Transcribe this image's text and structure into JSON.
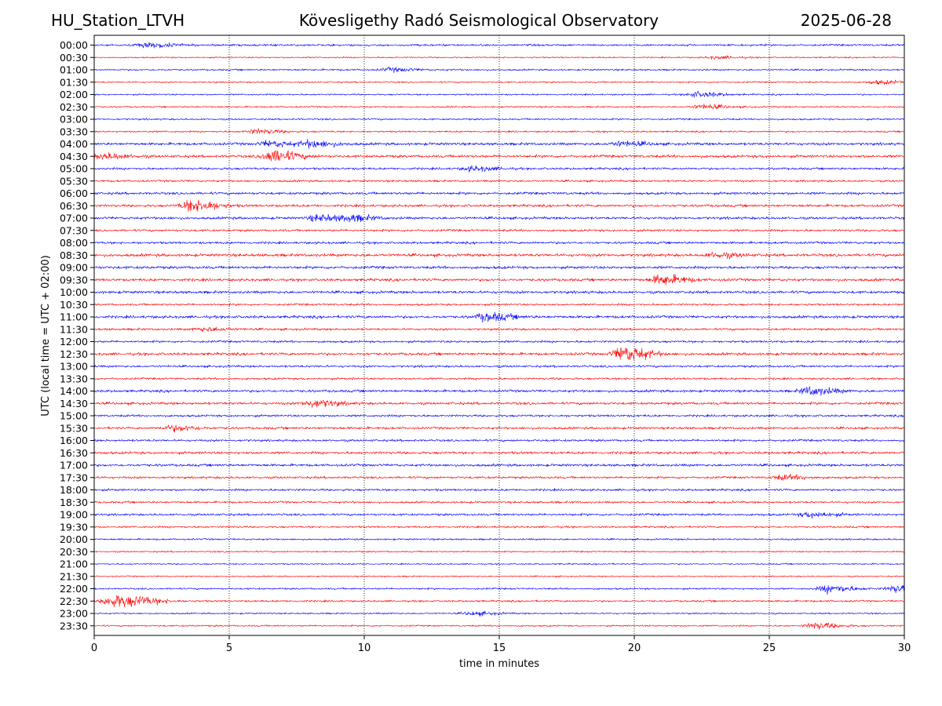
{
  "header": {
    "station": "HU_Station_LTVH",
    "observatory": "Kövesligethy Radó Seismological Observatory",
    "date": "2025-06-28"
  },
  "chart_data": {
    "type": "line",
    "title": "Kövesligethy Radó Seismological Observatory",
    "xlabel": "time in minutes",
    "ylabel": "UTC (local time = UTC + 02:00)",
    "xlim": [
      0,
      30
    ],
    "xticks": [
      0,
      5,
      10,
      15,
      20,
      25,
      30
    ],
    "vgrid_minutes": [
      5,
      10,
      15,
      20,
      25
    ],
    "grid": "dotted vertical",
    "colors": {
      "even_rows": "#0000ff",
      "odd_rows": "#ff0000",
      "grid": "#000000"
    },
    "rows": [
      "00:00",
      "00:30",
      "01:00",
      "01:30",
      "02:00",
      "02:30",
      "03:00",
      "03:30",
      "04:00",
      "04:30",
      "05:00",
      "05:30",
      "06:00",
      "06:30",
      "07:00",
      "07:30",
      "08:00",
      "08:30",
      "09:00",
      "09:30",
      "10:00",
      "10:30",
      "11:00",
      "11:30",
      "12:00",
      "12:30",
      "13:00",
      "13:30",
      "14:00",
      "14:30",
      "15:00",
      "15:30",
      "16:00",
      "16:30",
      "17:00",
      "17:30",
      "18:00",
      "18:30",
      "19:00",
      "19:30",
      "20:00",
      "20:30",
      "21:00",
      "21:30",
      "22:00",
      "22:30",
      "23:00",
      "23:30"
    ],
    "trace_noise": [
      1.2,
      0.8,
      1.0,
      0.9,
      0.9,
      0.9,
      1.0,
      1.0,
      1.6,
      1.6,
      1.3,
      1.2,
      1.5,
      1.5,
      1.5,
      1.3,
      1.4,
      1.7,
      1.6,
      1.6,
      1.6,
      1.2,
      1.6,
      1.3,
      1.3,
      1.6,
      1.3,
      1.2,
      1.5,
      1.5,
      1.3,
      1.4,
      1.3,
      1.5,
      1.5,
      1.3,
      1.3,
      1.2,
      1.3,
      1.1,
      1.0,
      0.9,
      0.8,
      0.8,
      1.0,
      1.1,
      0.9,
      0.9
    ],
    "events": [
      {
        "row": "00:00",
        "minute": 2.0,
        "amp": 2.5
      },
      {
        "row": "00:30",
        "minute": 23.0,
        "amp": 1.5
      },
      {
        "row": "01:00",
        "minute": 11.0,
        "amp": 2.0
      },
      {
        "row": "01:30",
        "minute": 29.0,
        "amp": 2.0
      },
      {
        "row": "02:00",
        "minute": 22.3,
        "amp": 3.0
      },
      {
        "row": "02:30",
        "minute": 22.5,
        "amp": 2.5
      },
      {
        "row": "03:30",
        "minute": 6.0,
        "amp": 2.5
      },
      {
        "row": "04:00",
        "minute": 6.5,
        "amp": 3.0
      },
      {
        "row": "04:00",
        "minute": 8.0,
        "amp": 3.5
      },
      {
        "row": "04:00",
        "minute": 19.5,
        "amp": 2.5
      },
      {
        "row": "04:30",
        "minute": 0.4,
        "amp": 3.0
      },
      {
        "row": "04:30",
        "minute": 6.6,
        "amp": 7.0
      },
      {
        "row": "05:00",
        "minute": 14.0,
        "amp": 2.5
      },
      {
        "row": "06:30",
        "minute": 3.6,
        "amp": 7.5
      },
      {
        "row": "07:00",
        "minute": 8.3,
        "amp": 3.5
      },
      {
        "row": "07:00",
        "minute": 9.5,
        "amp": 3.0
      },
      {
        "row": "08:30",
        "minute": 23.0,
        "amp": 2.5
      },
      {
        "row": "09:30",
        "minute": 21.0,
        "amp": 5.5
      },
      {
        "row": "11:00",
        "minute": 14.5,
        "amp": 4.5
      },
      {
        "row": "11:30",
        "minute": 4.0,
        "amp": 2.0
      },
      {
        "row": "12:30",
        "minute": 19.6,
        "amp": 9.5
      },
      {
        "row": "14:00",
        "minute": 26.5,
        "amp": 4.5
      },
      {
        "row": "14:30",
        "minute": 8.1,
        "amp": 4.0
      },
      {
        "row": "15:30",
        "minute": 2.9,
        "amp": 3.0
      },
      {
        "row": "17:30",
        "minute": 25.5,
        "amp": 2.5
      },
      {
        "row": "19:00",
        "minute": 26.5,
        "amp": 3.0
      },
      {
        "row": "22:00",
        "minute": 27.2,
        "amp": 4.5
      },
      {
        "row": "22:00",
        "minute": 29.7,
        "amp": 4.0
      },
      {
        "row": "22:30",
        "minute": 0.7,
        "amp": 7.5
      },
      {
        "row": "22:30",
        "minute": 1.8,
        "amp": 3.0
      },
      {
        "row": "23:00",
        "minute": 14.0,
        "amp": 2.0
      },
      {
        "row": "23:30",
        "minute": 26.7,
        "amp": 3.5
      }
    ]
  }
}
